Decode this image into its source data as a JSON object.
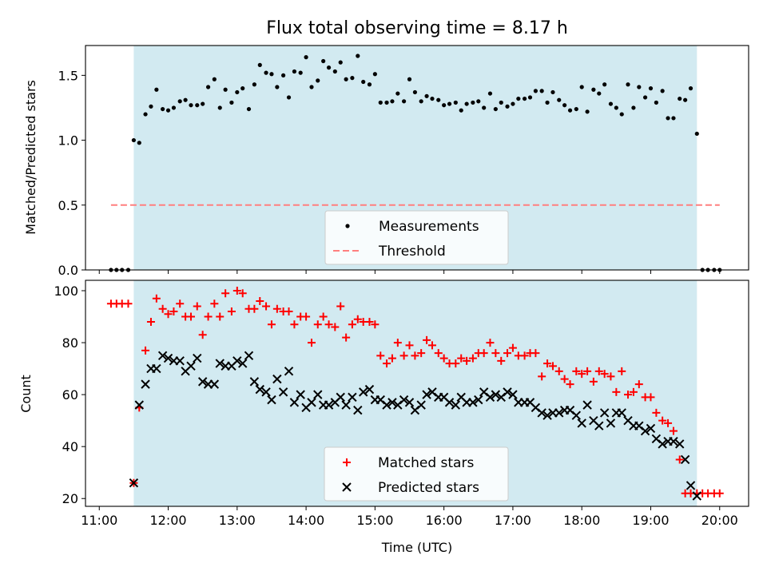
{
  "chart_data": [
    {
      "type": "scatter",
      "title": "Flux total observing time = 8.17 h",
      "ylabel": "Matched/Predicted stars",
      "xlabel": "",
      "x_unit": "hours UTC",
      "xlim": [
        10.8,
        20.42
      ],
      "ylim": [
        0,
        1.73
      ],
      "yticks": [
        0.0,
        0.5,
        1.0,
        1.5
      ],
      "ytick_labels": [
        "0.0",
        "0.5",
        "1.0",
        "1.5"
      ],
      "shaded_span": [
        11.5,
        19.67
      ],
      "shade_color": "#add8e6",
      "grid": false,
      "legend_position": "lower center",
      "threshold": 0.5,
      "threshold_color": "#ff7f7f",
      "series": [
        {
          "name": "Measurements",
          "marker": "dot",
          "color": "#000000",
          "x": [
            11.17,
            11.25,
            11.33,
            11.42,
            11.5,
            11.58,
            11.67,
            11.75,
            11.83,
            11.92,
            12.0,
            12.08,
            12.17,
            12.25,
            12.33,
            12.42,
            12.5,
            12.58,
            12.67,
            12.75,
            12.83,
            12.92,
            13.0,
            13.08,
            13.17,
            13.25,
            13.33,
            13.42,
            13.5,
            13.58,
            13.67,
            13.75,
            13.83,
            13.92,
            14.0,
            14.08,
            14.17,
            14.25,
            14.33,
            14.42,
            14.5,
            14.58,
            14.67,
            14.75,
            14.83,
            14.92,
            15.0,
            15.08,
            15.17,
            15.25,
            15.33,
            15.42,
            15.5,
            15.58,
            15.67,
            15.75,
            15.83,
            15.92,
            16.0,
            16.08,
            16.17,
            16.25,
            16.33,
            16.42,
            16.5,
            16.58,
            16.67,
            16.75,
            16.83,
            16.92,
            17.0,
            17.08,
            17.17,
            17.25,
            17.33,
            17.42,
            17.5,
            17.58,
            17.67,
            17.75,
            17.83,
            17.92,
            18.0,
            18.08,
            18.17,
            18.25,
            18.33,
            18.42,
            18.5,
            18.58,
            18.67,
            18.75,
            18.83,
            18.92,
            19.0,
            19.08,
            19.17,
            19.25,
            19.33,
            19.42,
            19.5,
            19.58,
            19.67,
            19.75,
            19.83,
            19.92,
            20.0
          ],
          "y": [
            0,
            0,
            0,
            0,
            1.0,
            0.98,
            1.2,
            1.26,
            1.39,
            1.24,
            1.23,
            1.25,
            1.3,
            1.31,
            1.27,
            1.27,
            1.28,
            1.41,
            1.47,
            1.25,
            1.39,
            1.29,
            1.37,
            1.4,
            1.24,
            1.43,
            1.58,
            1.52,
            1.51,
            1.41,
            1.5,
            1.33,
            1.53,
            1.52,
            1.64,
            1.41,
            1.46,
            1.61,
            1.56,
            1.53,
            1.6,
            1.47,
            1.48,
            1.65,
            1.45,
            1.43,
            1.51,
            1.29,
            1.29,
            1.3,
            1.36,
            1.3,
            1.47,
            1.37,
            1.3,
            1.34,
            1.32,
            1.31,
            1.27,
            1.28,
            1.29,
            1.23,
            1.28,
            1.29,
            1.3,
            1.25,
            1.36,
            1.24,
            1.29,
            1.26,
            1.28,
            1.32,
            1.32,
            1.33,
            1.38,
            1.38,
            1.29,
            1.37,
            1.31,
            1.27,
            1.23,
            1.24,
            1.41,
            1.22,
            1.39,
            1.36,
            1.43,
            1.28,
            1.25,
            1.2,
            1.43,
            1.25,
            1.41,
            1.33,
            1.4,
            1.29,
            1.38,
            1.17,
            1.17,
            1.32,
            1.31,
            1.4,
            1.05,
            0,
            0,
            0,
            0
          ]
        },
        {
          "name": "Threshold",
          "marker": "dashed-line",
          "color": "#ff7f7f",
          "x": [
            11.17,
            20.0
          ],
          "y": [
            0.5,
            0.5
          ]
        }
      ]
    },
    {
      "type": "scatter",
      "title": "",
      "xlabel": "Time (UTC)",
      "ylabel": "Count",
      "x_unit": "hours UTC",
      "xlim": [
        10.8,
        20.42
      ],
      "ylim": [
        17,
        104
      ],
      "xticks": [
        11,
        12,
        13,
        14,
        15,
        16,
        17,
        18,
        19,
        20
      ],
      "xtick_labels": [
        "11:00",
        "12:00",
        "13:00",
        "14:00",
        "15:00",
        "16:00",
        "17:00",
        "18:00",
        "19:00",
        "20:00"
      ],
      "yticks": [
        20,
        40,
        60,
        80,
        100
      ],
      "ytick_labels": [
        "20",
        "40",
        "60",
        "80",
        "100"
      ],
      "shaded_span": [
        11.5,
        19.67
      ],
      "shade_color": "#add8e6",
      "grid": false,
      "legend_position": "lower center",
      "series": [
        {
          "name": "Matched stars",
          "marker": "plus",
          "color": "#ff0000",
          "x": [
            11.17,
            11.25,
            11.33,
            11.42,
            11.5,
            11.58,
            11.67,
            11.75,
            11.83,
            11.92,
            12.0,
            12.08,
            12.17,
            12.25,
            12.33,
            12.42,
            12.5,
            12.58,
            12.67,
            12.75,
            12.83,
            12.92,
            13.0,
            13.08,
            13.17,
            13.25,
            13.33,
            13.42,
            13.5,
            13.58,
            13.67,
            13.75,
            13.83,
            13.92,
            14.0,
            14.08,
            14.17,
            14.25,
            14.33,
            14.42,
            14.5,
            14.58,
            14.67,
            14.75,
            14.83,
            14.92,
            15.0,
            15.08,
            15.17,
            15.25,
            15.33,
            15.42,
            15.5,
            15.58,
            15.67,
            15.75,
            15.83,
            15.92,
            16.0,
            16.08,
            16.17,
            16.25,
            16.33,
            16.42,
            16.5,
            16.58,
            16.67,
            16.75,
            16.83,
            16.92,
            17.0,
            17.08,
            17.17,
            17.25,
            17.33,
            17.42,
            17.5,
            17.58,
            17.67,
            17.75,
            17.83,
            17.92,
            18.0,
            18.08,
            18.17,
            18.25,
            18.33,
            18.42,
            18.5,
            18.58,
            18.67,
            18.75,
            18.83,
            18.92,
            19.0,
            19.08,
            19.17,
            19.25,
            19.33,
            19.42,
            19.5,
            19.58,
            19.67,
            19.75,
            19.83,
            19.92,
            20.0
          ],
          "y": [
            95,
            95,
            95,
            95,
            26,
            55,
            77,
            88,
            97,
            93,
            91,
            92,
            95,
            90,
            90,
            94,
            83,
            90,
            95,
            90,
            99,
            92,
            100,
            99,
            93,
            93,
            96,
            94,
            87,
            93,
            92,
            92,
            87,
            90,
            90,
            80,
            87,
            90,
            87,
            86,
            94,
            82,
            87,
            89,
            88,
            88,
            87,
            75,
            72,
            74,
            80,
            75,
            79,
            75,
            76,
            81,
            79,
            76,
            74,
            72,
            72,
            74,
            73,
            74,
            76,
            76,
            80,
            76,
            73,
            76,
            78,
            75,
            75,
            76,
            76,
            67,
            72,
            71,
            69,
            66,
            64,
            69,
            68,
            69,
            65,
            69,
            68,
            67,
            61,
            69,
            60,
            61,
            64,
            59,
            59,
            53,
            50,
            49,
            46,
            35,
            22,
            22,
            22,
            22,
            22,
            22,
            22
          ],
          "x_trim": 2
        },
        {
          "name": "Predicted stars",
          "marker": "x",
          "color": "#000000",
          "x": [
            11.5,
            11.58,
            11.67,
            11.75,
            11.83,
            11.92,
            12.0,
            12.08,
            12.17,
            12.25,
            12.33,
            12.42,
            12.5,
            12.58,
            12.67,
            12.75,
            12.83,
            12.92,
            13.0,
            13.08,
            13.17,
            13.25,
            13.33,
            13.42,
            13.5,
            13.58,
            13.67,
            13.75,
            13.83,
            13.92,
            14.0,
            14.08,
            14.17,
            14.25,
            14.33,
            14.42,
            14.5,
            14.58,
            14.67,
            14.75,
            14.83,
            14.92,
            15.0,
            15.08,
            15.17,
            15.25,
            15.33,
            15.42,
            15.5,
            15.58,
            15.67,
            15.75,
            15.83,
            15.92,
            16.0,
            16.08,
            16.17,
            16.25,
            16.33,
            16.42,
            16.5,
            16.58,
            16.67,
            16.75,
            16.83,
            16.92,
            17.0,
            17.08,
            17.17,
            17.25,
            17.33,
            17.42,
            17.5,
            17.58,
            17.67,
            17.75,
            17.83,
            17.92,
            18.0,
            18.08,
            18.17,
            18.25,
            18.33,
            18.42,
            18.5,
            18.58,
            18.67,
            18.75,
            18.83,
            18.92,
            19.0,
            19.08,
            19.17,
            19.25,
            19.33,
            19.42,
            19.5,
            19.58,
            19.67
          ],
          "y": [
            26,
            56,
            64,
            70,
            70,
            75,
            74,
            73,
            73,
            69,
            71,
            74,
            65,
            64,
            64,
            72,
            71,
            71,
            73,
            72,
            75,
            65,
            62,
            61,
            58,
            66,
            61,
            69,
            57,
            60,
            55,
            57,
            60,
            56,
            56,
            57,
            59,
            56,
            59,
            54,
            61,
            62,
            58,
            58,
            56,
            57,
            56,
            58,
            57,
            54,
            56,
            60,
            61,
            59,
            59,
            57,
            56,
            59,
            57,
            57,
            58,
            61,
            59,
            60,
            59,
            61,
            60,
            57,
            57,
            57,
            55,
            53,
            52,
            53,
            53,
            54,
            54,
            52,
            49,
            56,
            50,
            48,
            53,
            49,
            53,
            53,
            50,
            48,
            48,
            46,
            47,
            43,
            41,
            42,
            42,
            41,
            35,
            25,
            21
          ],
          "x_trim": 0
        }
      ]
    }
  ]
}
